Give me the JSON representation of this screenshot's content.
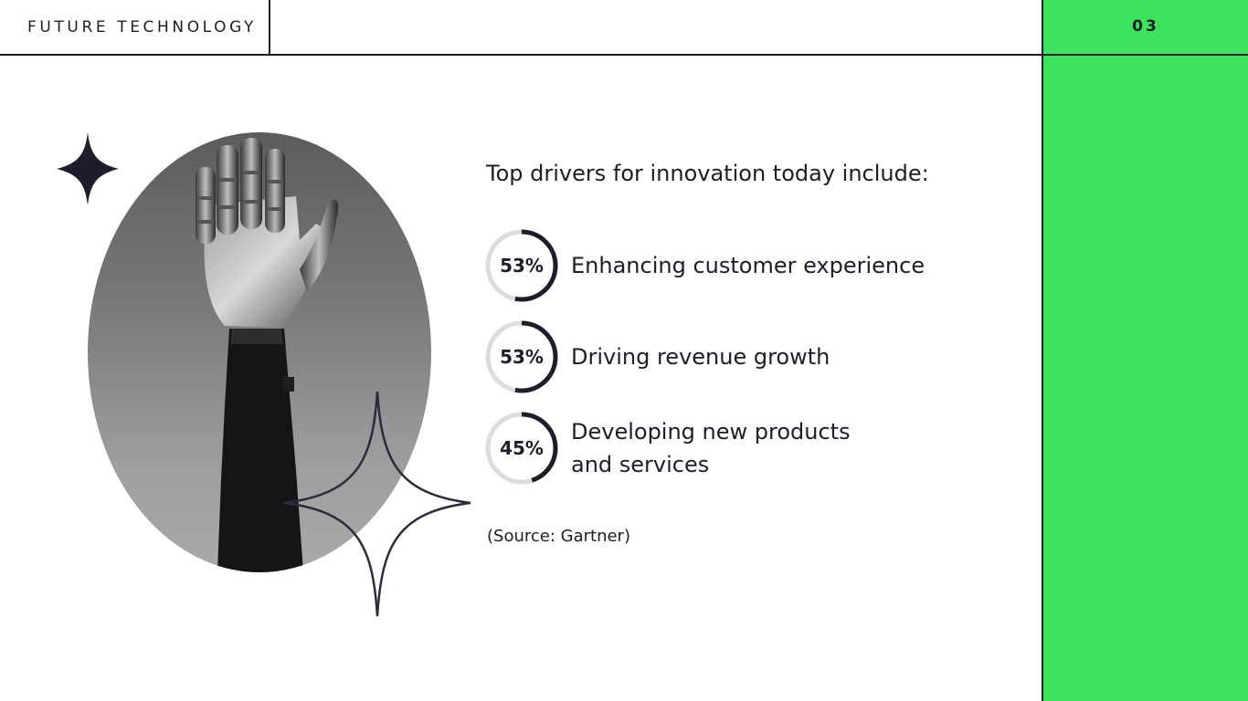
{
  "header": {
    "title": "FUTURE TECHNOLOGY",
    "page_number": "03"
  },
  "colors": {
    "accent_green": "#3de35f",
    "dark_navy": "#1d1d2c",
    "ring_track": "#dcdcdc"
  },
  "decor": {
    "image_subject": "robotic-hand-photo",
    "star_filled_icon": "four-point-star-icon",
    "star_outline_icon": "four-point-star-outline-icon"
  },
  "content": {
    "intro": "Top drivers for innovation today include:",
    "stats": [
      {
        "percent": 53,
        "value_label": "53%",
        "label": "Enhancing customer experience"
      },
      {
        "percent": 53,
        "value_label": "53%",
        "label": "Driving revenue growth"
      },
      {
        "percent": 45,
        "value_label": "45%",
        "label": "Developing new products\nand services"
      }
    ],
    "source": "(Source: Gartner)"
  }
}
